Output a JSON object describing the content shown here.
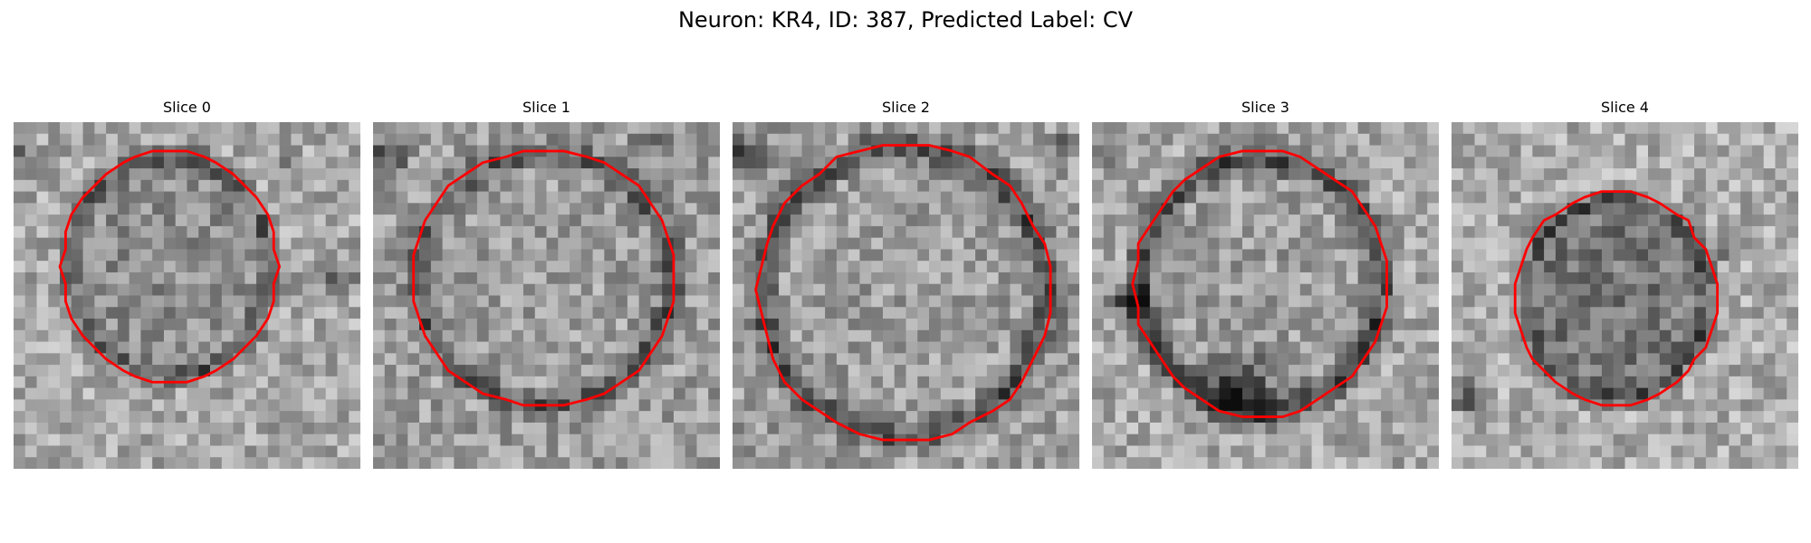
{
  "figure": {
    "title": "Neuron: KR4, ID: 387, Predicted Label: CV",
    "colormap": "grayscale",
    "contour_color": "#ff0000"
  },
  "panels": [
    {
      "title": "Slice 0",
      "content": "grayscale pixelated micrograph of a round soma with red outline contour"
    },
    {
      "title": "Slice 1",
      "content": "grayscale pixelated micrograph of a round soma with red outline contour"
    },
    {
      "title": "Slice 2",
      "content": "grayscale pixelated micrograph of a round soma with red outline contour"
    },
    {
      "title": "Slice 3",
      "content": "grayscale pixelated micrograph of a round soma with red outline contour"
    },
    {
      "title": "Slice 4",
      "content": "grayscale pixelated micrograph of a round soma with red outline contour"
    }
  ]
}
